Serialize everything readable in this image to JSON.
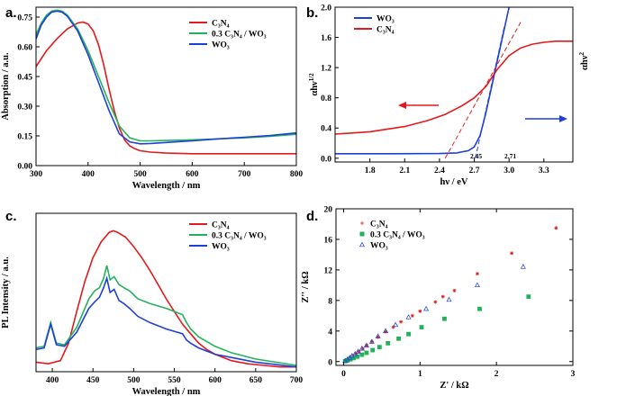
{
  "colors": {
    "C3N4": "#e31a1c",
    "composite": "#22b35a",
    "WO3": "#1f3fd8",
    "axis": "#000000"
  },
  "chart_data": [
    {
      "type": "line",
      "panel": "a.",
      "xlabel": "Wavelength / nm",
      "ylabel": "Absorption / a.u.",
      "xlim": [
        300,
        800
      ],
      "ylim": [
        0.0,
        0.8
      ],
      "xticks": [
        "300",
        "400",
        "500",
        "600",
        "700",
        "800"
      ],
      "yticks": [
        "0.00",
        "0.15",
        "0.30",
        "0.45",
        "0.60",
        "0.75"
      ],
      "legend_position": "top-right",
      "series": [
        {
          "name": "C3N4",
          "legend": "C₃N₄",
          "color": "#e31a1c",
          "x": [
            300,
            320,
            340,
            360,
            380,
            390,
            400,
            410,
            420,
            430,
            440,
            450,
            460,
            470,
            480,
            490,
            500,
            520,
            550,
            600,
            700,
            800
          ],
          "y": [
            0.5,
            0.58,
            0.64,
            0.69,
            0.72,
            0.725,
            0.715,
            0.68,
            0.61,
            0.51,
            0.39,
            0.28,
            0.19,
            0.13,
            0.1,
            0.085,
            0.075,
            0.068,
            0.063,
            0.06,
            0.06,
            0.06
          ]
        },
        {
          "name": "0.3 C3N4 / WO3",
          "legend": "0.3 C₃N₄ / WO₃",
          "color": "#22b35a",
          "x": [
            300,
            310,
            320,
            330,
            340,
            350,
            360,
            380,
            400,
            420,
            440,
            460,
            480,
            500,
            520,
            550,
            600,
            650,
            700,
            750,
            800
          ],
          "y": [
            0.66,
            0.72,
            0.76,
            0.78,
            0.785,
            0.78,
            0.76,
            0.69,
            0.58,
            0.45,
            0.32,
            0.2,
            0.14,
            0.125,
            0.125,
            0.127,
            0.13,
            0.135,
            0.14,
            0.148,
            0.158
          ]
        },
        {
          "name": "WO3",
          "legend": "WO₃",
          "color": "#1f3fd8",
          "x": [
            300,
            310,
            320,
            330,
            340,
            350,
            360,
            380,
            400,
            420,
            440,
            460,
            480,
            500,
            520,
            550,
            600,
            650,
            700,
            750,
            800
          ],
          "y": [
            0.64,
            0.71,
            0.75,
            0.775,
            0.78,
            0.775,
            0.755,
            0.68,
            0.56,
            0.42,
            0.28,
            0.16,
            0.12,
            0.11,
            0.112,
            0.117,
            0.125,
            0.135,
            0.143,
            0.152,
            0.165
          ]
        }
      ]
    },
    {
      "type": "line",
      "panel": "b.",
      "xlabel": "hν / eV",
      "ylabel": "αhν",
      "ylabel_sup": "1/2",
      "ylabel_right": "αhν",
      "ylabel_right_sup": "2",
      "xlim": [
        1.5,
        3.55
      ],
      "ylim": [
        -0.05,
        2.0
      ],
      "xticks": [
        "1.8",
        "2.1",
        "2.4",
        "2.7",
        "3.0",
        "3.3"
      ],
      "yticks": [
        "0.0",
        "0.4",
        "0.8",
        "1.2",
        "1.6",
        "2.0"
      ],
      "legend_position": "top-left",
      "annotations": [
        "2.45",
        "2.71"
      ],
      "series": [
        {
          "name": "WO3",
          "legend": "WO₃",
          "color": "#1f3fd8",
          "x": [
            1.5,
            2.0,
            2.4,
            2.55,
            2.65,
            2.7,
            2.75,
            2.8,
            2.85,
            2.9,
            2.95,
            3.0
          ],
          "y": [
            0.06,
            0.06,
            0.062,
            0.07,
            0.1,
            0.15,
            0.3,
            0.6,
            0.95,
            1.3,
            1.65,
            2.0
          ]
        },
        {
          "name": "C3N4",
          "legend": "C₃N₄",
          "color": "#e31a1c",
          "x": [
            1.5,
            1.8,
            2.1,
            2.3,
            2.45,
            2.6,
            2.7,
            2.8,
            2.9,
            3.0,
            3.1,
            3.2,
            3.3,
            3.4,
            3.55
          ],
          "y": [
            0.32,
            0.35,
            0.42,
            0.5,
            0.58,
            0.7,
            0.8,
            0.95,
            1.18,
            1.36,
            1.46,
            1.51,
            1.535,
            1.55,
            1.55
          ]
        },
        {
          "name": "C3N4 tangent",
          "color": "#e31a1c",
          "dashed": true,
          "x": [
            2.45,
            3.1
          ],
          "y": [
            0.0,
            1.8
          ]
        },
        {
          "name": "WO3 tangent",
          "color": "#1f3fd8",
          "dashed": true,
          "x": [
            2.71,
            2.96
          ],
          "y": [
            0.0,
            1.75
          ]
        }
      ]
    },
    {
      "type": "line",
      "panel": "c.",
      "xlabel": "Wavelength / nm",
      "ylabel": "PL Intensity / a.u.",
      "xlim": [
        380,
        700
      ],
      "ylim": [
        0,
        1.0
      ],
      "xticks": [
        "400",
        "450",
        "500",
        "550",
        "600",
        "650",
        "700"
      ],
      "yticks": [],
      "legend_position": "top-right",
      "series": [
        {
          "name": "C3N4",
          "legend": "C₃N₄",
          "color": "#e31a1c",
          "x": [
            380,
            395,
            410,
            420,
            430,
            440,
            450,
            460,
            470,
            475,
            480,
            490,
            500,
            510,
            520,
            530,
            540,
            550,
            560,
            570,
            580,
            590,
            600,
            620,
            640,
            660,
            680,
            700
          ],
          "y": [
            0.06,
            0.05,
            0.07,
            0.18,
            0.38,
            0.57,
            0.72,
            0.82,
            0.88,
            0.89,
            0.88,
            0.85,
            0.79,
            0.72,
            0.64,
            0.55,
            0.46,
            0.38,
            0.3,
            0.24,
            0.18,
            0.14,
            0.11,
            0.07,
            0.05,
            0.04,
            0.03,
            0.03
          ]
        },
        {
          "name": "0.3 C3N4 / WO3",
          "legend": "0.3 C₃N₄ / WO₃",
          "color": "#22b35a",
          "x": [
            380,
            390,
            398,
            405,
            415,
            430,
            445,
            452,
            458,
            463,
            467,
            471,
            476,
            482,
            488,
            495,
            505,
            520,
            540,
            560,
            565,
            570,
            580,
            600,
            620,
            650,
            700
          ],
          "y": [
            0.15,
            0.16,
            0.31,
            0.18,
            0.17,
            0.28,
            0.46,
            0.51,
            0.53,
            0.59,
            0.67,
            0.58,
            0.6,
            0.55,
            0.53,
            0.51,
            0.46,
            0.43,
            0.4,
            0.36,
            0.31,
            0.27,
            0.22,
            0.16,
            0.12,
            0.08,
            0.04
          ]
        },
        {
          "name": "WO3",
          "legend": "WO₃",
          "color": "#1f3fd8",
          "x": [
            380,
            390,
            398,
            405,
            415,
            430,
            445,
            452,
            458,
            463,
            467,
            471,
            476,
            482,
            488,
            495,
            505,
            520,
            540,
            560,
            565,
            570,
            580,
            600,
            620,
            650,
            700
          ],
          "y": [
            0.14,
            0.15,
            0.3,
            0.17,
            0.16,
            0.25,
            0.4,
            0.44,
            0.47,
            0.53,
            0.59,
            0.5,
            0.52,
            0.45,
            0.43,
            0.4,
            0.35,
            0.31,
            0.27,
            0.24,
            0.2,
            0.18,
            0.15,
            0.11,
            0.09,
            0.06,
            0.03
          ]
        }
      ]
    },
    {
      "type": "scatter",
      "panel": "d.",
      "xlabel": "Z' / kΩ",
      "ylabel": "Z'' / kΩ",
      "xlim": [
        -0.1,
        3.0
      ],
      "ylim": [
        -0.5,
        20
      ],
      "xticks": [
        "0",
        "1",
        "2",
        "3"
      ],
      "yticks": [
        "0",
        "4",
        "8",
        "12",
        "16",
        "20"
      ],
      "legend_position": "top-left",
      "series": [
        {
          "name": "C3N4",
          "legend": "C₃N₄",
          "color": "#e31a1c",
          "marker": "star",
          "x": [
            0.02,
            0.05,
            0.08,
            0.12,
            0.16,
            0.2,
            0.25,
            0.3,
            0.37,
            0.45,
            0.55,
            0.65,
            0.75,
            0.9,
            1.0,
            1.2,
            1.3,
            1.45,
            1.75,
            2.2,
            2.78
          ],
          "y": [
            0.1,
            0.25,
            0.45,
            0.7,
            1.0,
            1.3,
            1.7,
            2.1,
            2.6,
            3.2,
            3.9,
            4.5,
            5.2,
            6.0,
            6.6,
            7.8,
            8.5,
            9.3,
            11.5,
            14.2,
            17.5
          ]
        },
        {
          "name": "0.3 C3N4 / WO3",
          "legend": "0.3 C₃N₄ /  WO₃",
          "color": "#22b35a",
          "marker": "square",
          "x": [
            0.02,
            0.05,
            0.09,
            0.13,
            0.18,
            0.24,
            0.3,
            0.38,
            0.47,
            0.58,
            0.72,
            0.85,
            1.02,
            1.32,
            1.78,
            2.42
          ],
          "y": [
            0.05,
            0.15,
            0.3,
            0.45,
            0.65,
            0.9,
            1.15,
            1.5,
            1.9,
            2.4,
            3.0,
            3.6,
            4.5,
            5.6,
            6.9,
            8.5
          ]
        },
        {
          "name": "WO3",
          "legend": "WO₃",
          "color": "#1f3fd8",
          "marker": "triangle",
          "x": [
            0.02,
            0.05,
            0.08,
            0.11,
            0.15,
            0.19,
            0.24,
            0.3,
            0.37,
            0.45,
            0.55,
            0.68,
            0.85,
            1.08,
            1.38,
            1.75,
            2.35
          ],
          "y": [
            0.1,
            0.3,
            0.5,
            0.75,
            1.0,
            1.3,
            1.7,
            2.1,
            2.6,
            3.3,
            4.0,
            4.8,
            5.8,
            6.9,
            8.1,
            10.0,
            12.4
          ]
        }
      ]
    }
  ]
}
